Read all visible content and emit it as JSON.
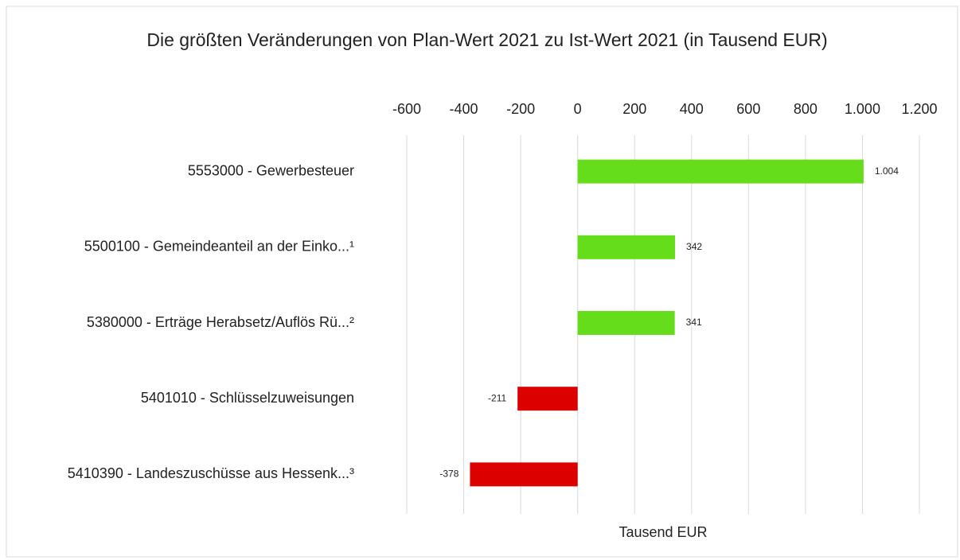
{
  "chart_data": {
    "type": "barh",
    "title": "Die größten Veränderungen von Plan-Wert 2021 zu Ist-Wert 2021 (in Tausend EUR)",
    "x_label": "Tausend EUR",
    "categories": [
      "5553000 - Gewerbesteuer",
      "5500100 - Gemeindeanteil an der Einko...¹",
      "5380000 - Erträge Herabsetz/Auflös Rü...²",
      "5401010 - Schlüsselzuweisungen",
      "5410390 - Landeszuschüsse aus Hessenk...³"
    ],
    "values": [
      1004,
      342,
      341,
      -211,
      -378
    ],
    "value_labels": [
      "1.004",
      "342",
      "341",
      "-211",
      "-378"
    ],
    "colors": [
      "#66dd1a",
      "#66dd1a",
      "#66dd1a",
      "#dd0000",
      "#dd0000"
    ],
    "xlim": [
      -600,
      1200
    ],
    "xticks": [
      -600,
      -400,
      -200,
      0,
      200,
      400,
      600,
      800,
      {
        "value": 1000,
        "label": "1.000"
      },
      {
        "value": 1200,
        "label": "1.200"
      }
    ],
    "grid": true
  }
}
